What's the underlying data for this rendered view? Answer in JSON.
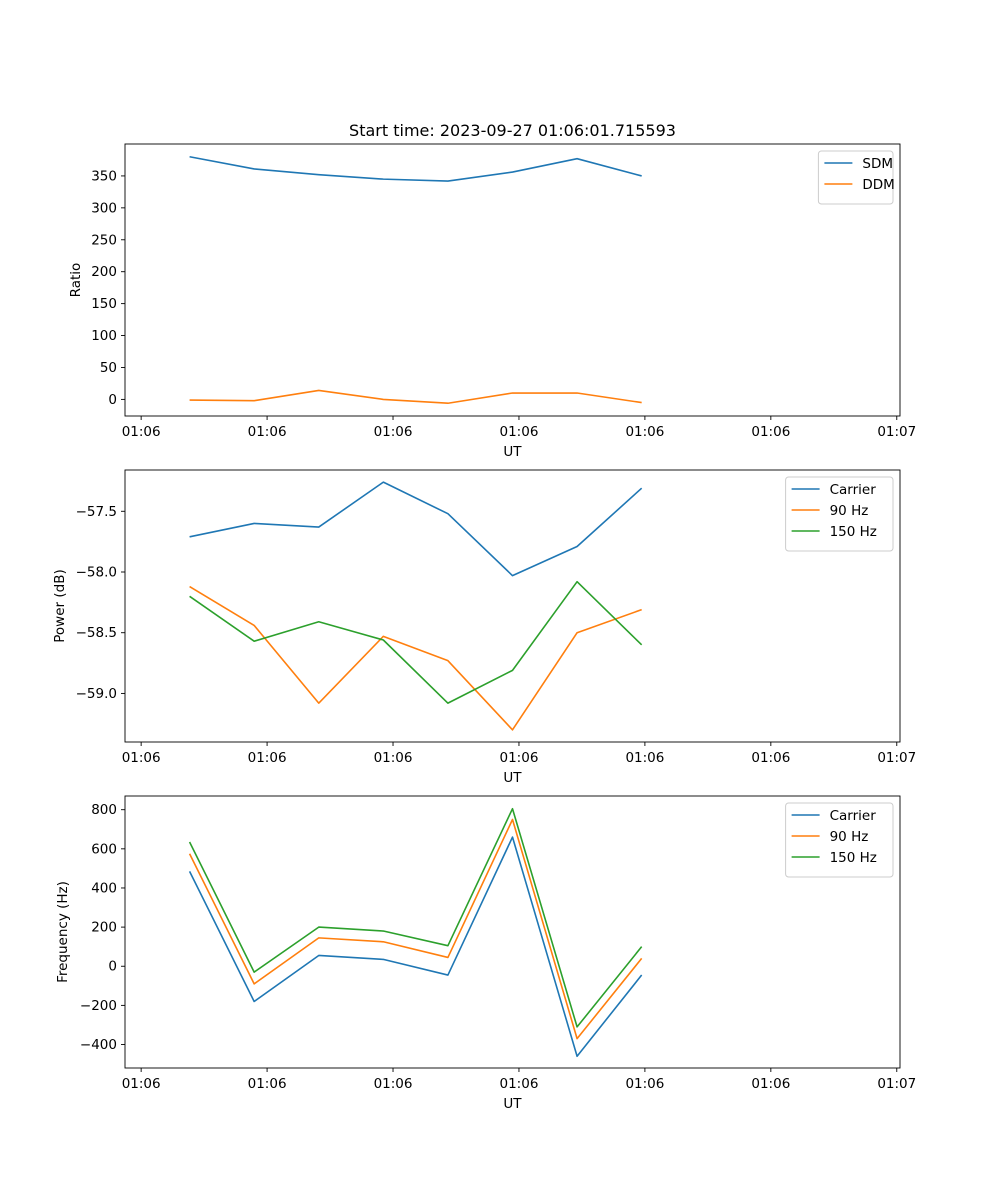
{
  "chart_data": [
    {
      "type": "line",
      "title": "Start time: 2023-09-27 01:06:01.715593",
      "xlabel": "UT",
      "ylabel": "Ratio",
      "x_tick_labels": [
        "01:06",
        "01:06",
        "01:06",
        "01:06",
        "01:06",
        "01:06",
        "01:06"
      ],
      "x_last_tick_label": "01:07",
      "x": [
        1,
        2,
        3,
        4,
        5,
        6,
        7,
        8
      ],
      "xlim": [
        0,
        12.0
      ],
      "ylim": [
        -26,
        400
      ],
      "yticks": [
        0,
        50,
        100,
        150,
        200,
        250,
        300,
        350
      ],
      "legend_position": "top-right",
      "series": [
        {
          "name": "SDM",
          "color": "#1f77b4",
          "values": [
            380,
            361,
            352,
            345,
            342,
            356,
            377,
            350
          ]
        },
        {
          "name": "DDM",
          "color": "#ff7f0e",
          "values": [
            -1,
            -2,
            14,
            0,
            -6,
            10,
            10,
            -5
          ]
        }
      ]
    },
    {
      "type": "line",
      "title": "",
      "xlabel": "UT",
      "ylabel": "Power (dB)",
      "x_tick_labels": [
        "01:06",
        "01:06",
        "01:06",
        "01:06",
        "01:06",
        "01:06",
        "01:06"
      ],
      "x_last_tick_label": "01:07",
      "x": [
        1,
        2,
        3,
        4,
        5,
        6,
        7,
        8
      ],
      "xlim": [
        0,
        12.0
      ],
      "ylim": [
        -59.4,
        -57.16
      ],
      "yticks": [
        -57.5,
        -58.0,
        -58.5,
        -59.0
      ],
      "ytick_labels": [
        "−57.5",
        "−58.0",
        "−58.5",
        "−59.0"
      ],
      "legend_position": "top-right",
      "series": [
        {
          "name": "Carrier",
          "color": "#1f77b4",
          "values": [
            -57.71,
            -57.6,
            -57.63,
            -57.26,
            -57.52,
            -58.03,
            -57.79,
            -57.31
          ]
        },
        {
          "name": "90 Hz",
          "color": "#ff7f0e",
          "values": [
            -58.12,
            -58.44,
            -59.08,
            -58.53,
            -58.73,
            -59.3,
            -58.5,
            -58.31
          ]
        },
        {
          "name": "150 Hz",
          "color": "#2ca02c",
          "values": [
            -58.2,
            -58.57,
            -58.41,
            -58.56,
            -59.08,
            -58.81,
            -58.08,
            -58.6
          ]
        }
      ]
    },
    {
      "type": "line",
      "title": "",
      "xlabel": "UT",
      "ylabel": "Frequency (Hz)",
      "x_tick_labels": [
        "01:06",
        "01:06",
        "01:06",
        "01:06",
        "01:06",
        "01:06",
        "01:06"
      ],
      "x_last_tick_label": "01:07",
      "x": [
        1,
        2,
        3,
        4,
        5,
        6,
        7,
        8
      ],
      "xlim": [
        0,
        12.0
      ],
      "ylim": [
        -520,
        870
      ],
      "yticks": [
        800,
        600,
        400,
        200,
        0,
        -200,
        -400
      ],
      "ytick_labels": [
        "800",
        "600",
        "400",
        "200",
        "0",
        "−200",
        "−400"
      ],
      "legend_position": "top-right",
      "series": [
        {
          "name": "Carrier",
          "color": "#1f77b4",
          "values": [
            485,
            -180,
            55,
            35,
            -45,
            660,
            -460,
            -45
          ]
        },
        {
          "name": "90 Hz",
          "color": "#ff7f0e",
          "values": [
            575,
            -90,
            145,
            125,
            45,
            750,
            -370,
            40
          ]
        },
        {
          "name": "150 Hz",
          "color": "#2ca02c",
          "values": [
            635,
            -30,
            200,
            180,
            105,
            805,
            -310,
            100
          ]
        }
      ]
    }
  ]
}
